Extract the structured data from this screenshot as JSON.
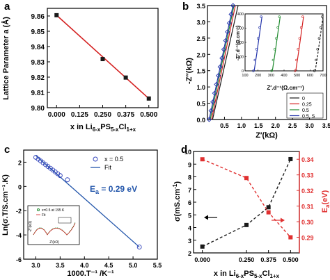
{
  "chart_data": [
    {
      "panel_label": "a",
      "type": "line",
      "ylabel": "Lattice Parameter a (Å)",
      "xlabel": "x in Li6-xPS5-xCl1+x",
      "xlim": [
        -0.05,
        0.55
      ],
      "ylim": [
        9.8,
        9.865
      ],
      "xticks": [
        "0.000",
        "0.125",
        "0.250",
        "0.375",
        "0.500"
      ],
      "yticks": [
        "9.80",
        "9.81",
        "9.82",
        "9.83",
        "9.84",
        "9.85",
        "9.86"
      ],
      "colors": {
        "marker": "#1a1a1a",
        "fit": "#d42020"
      },
      "series": [
        {
          "x": [
            0.0,
            0.25,
            0.375,
            0.5
          ],
          "y": [
            9.8605,
            9.8318,
            9.8197,
            9.806
          ]
        }
      ]
    },
    {
      "panel_label": "b",
      "type": "line",
      "ylabel": "-Z″(kΩ)",
      "xlabel": "Z′(kΩ)",
      "xlim": [
        0,
        3.5
      ],
      "ylim": [
        0,
        3.5
      ],
      "xticks": [
        "0.5",
        "1.0",
        "1.5",
        "2.0",
        "2.5",
        "3.0",
        "3.5"
      ],
      "yticks": [
        "0.0",
        "0.5",
        "1.0",
        "1.5",
        "2.0",
        "2.5",
        "3.0",
        "3.5"
      ],
      "legend": {
        "placement": "bottom-right",
        "entries": [
          "0",
          "0.25",
          "0.5",
          "0.5, S"
        ]
      },
      "colors": {
        "s0": "#1a1a1a",
        "s025": "#d42020",
        "s05": "#1f8a2e",
        "s05S": "#2233aa"
      },
      "series": [
        {
          "name": "0",
          "x": [
            0.15,
            0.3,
            0.45,
            0.6,
            0.75,
            0.9
          ],
          "y": [
            0.0,
            0.7,
            1.4,
            2.1,
            2.8,
            3.5
          ]
        },
        {
          "name": "0.25",
          "x": [
            0.12,
            0.26,
            0.4,
            0.54,
            0.68,
            0.82
          ],
          "y": [
            0.0,
            0.7,
            1.4,
            2.1,
            2.8,
            3.5
          ]
        },
        {
          "name": "0.5",
          "x": [
            0.08,
            0.22,
            0.36,
            0.5,
            0.64,
            0.78
          ],
          "y": [
            0.0,
            0.7,
            1.4,
            2.1,
            2.8,
            3.5
          ]
        },
        {
          "name": "0.5, S",
          "x": [
            0.05,
            0.19,
            0.33,
            0.47,
            0.61,
            0.75
          ],
          "y": [
            0.0,
            0.7,
            1.4,
            2.1,
            2.8,
            3.5
          ]
        }
      ],
      "inset": {
        "xlabel": "Z′.d⁻¹(Ω.cm⁻¹)",
        "ylabel": "-Z″.d⁻¹(Ω.cm⁻¹)",
        "xlim": [
          100,
          700
        ],
        "ylim": [
          0,
          400
        ],
        "xticks": [
          "100",
          "200",
          "300",
          "400",
          "500",
          "600",
          "700"
        ],
        "yticks": [
          "0",
          "100",
          "200",
          "300",
          "400"
        ],
        "series": [
          {
            "name": "0",
            "x": [
              640,
              660,
              680,
              700
            ],
            "y": [
              0,
              120,
              250,
              380
            ]
          },
          {
            "name": "0.25",
            "x": [
              490,
              510,
              530,
              550
            ],
            "y": [
              0,
              120,
              250,
              380
            ]
          },
          {
            "name": "0.5",
            "x": [
              310,
              330,
              350,
              370
            ],
            "y": [
              0,
              120,
              250,
              380
            ]
          },
          {
            "name": "0.5, S",
            "x": [
              170,
              190,
              210,
              230
            ],
            "y": [
              0,
              120,
              250,
              380
            ]
          }
        ]
      }
    },
    {
      "panel_label": "c",
      "type": "scatter",
      "ylabel": "Ln(σ.T/S.cm⁻¹.K)",
      "xlabel": "1000.T⁻¹ /K⁻¹",
      "xlim": [
        2.75,
        5.5
      ],
      "ylim": [
        -6,
        3
      ],
      "xticks": [
        "3.0",
        "3.5",
        "4.0",
        "4.5",
        "5.0",
        "5.5"
      ],
      "yticks": [
        "-6",
        "-4",
        "-2",
        "0",
        "2"
      ],
      "legend": {
        "placement": "top-right",
        "entries": [
          "x = 0.5",
          "Fit"
        ]
      },
      "annotation": "Ea = 0.29 eV",
      "colors": {
        "marker": "#3344bb",
        "fit": "#2255aa"
      },
      "series": [
        {
          "name": "x = 0.5",
          "x": [
            3.0,
            3.05,
            3.1,
            3.15,
            3.2,
            3.25,
            3.3,
            3.35,
            3.4,
            3.45,
            3.5,
            3.65,
            5.13
          ],
          "y": [
            2.4,
            2.25,
            2.1,
            1.95,
            1.8,
            1.65,
            1.5,
            1.35,
            1.2,
            1.05,
            0.9,
            0.55,
            -5.0
          ]
        }
      ],
      "fit": {
        "x": [
          3.0,
          5.13
        ],
        "y": [
          2.55,
          -5.0
        ]
      },
      "inset": {
        "legend": [
          "x=0.5 at 195 K",
          "Fit"
        ],
        "xlabel": "Z′(kΩ)",
        "ylabel": "-Z″(kΩ)"
      }
    },
    {
      "panel_label": "d",
      "type": "scatter",
      "ylabel": "σ(mS.cm⁻¹)",
      "ylabel_right": "Ea(eV)",
      "xlabel": "x in Li6-xPS5-xCl1+x",
      "xlim": [
        -0.05,
        0.55
      ],
      "ylim": [
        2,
        10
      ],
      "ylim_right": [
        0.28,
        0.345
      ],
      "xticks": [
        "0.000",
        "0.250",
        "0.375",
        "0.500"
      ],
      "yticks": [
        "2",
        "3",
        "4",
        "5",
        "6",
        "7",
        "8",
        "9",
        "10"
      ],
      "yticks_right": [
        "0.29",
        "0.30",
        "0.31",
        "0.32",
        "0.33",
        "0.34"
      ],
      "colors": {
        "left": "#1a1a1a",
        "right": "#e03030"
      },
      "series": [
        {
          "name": "σ",
          "axis": "left",
          "x": [
            0.0,
            0.25,
            0.375,
            0.5
          ],
          "y": [
            2.5,
            4.2,
            5.6,
            9.4
          ]
        },
        {
          "name": "Ea",
          "axis": "right",
          "x": [
            0.0,
            0.25,
            0.375,
            0.5
          ],
          "y": [
            0.34,
            0.328,
            0.306,
            0.29
          ]
        }
      ]
    }
  ]
}
